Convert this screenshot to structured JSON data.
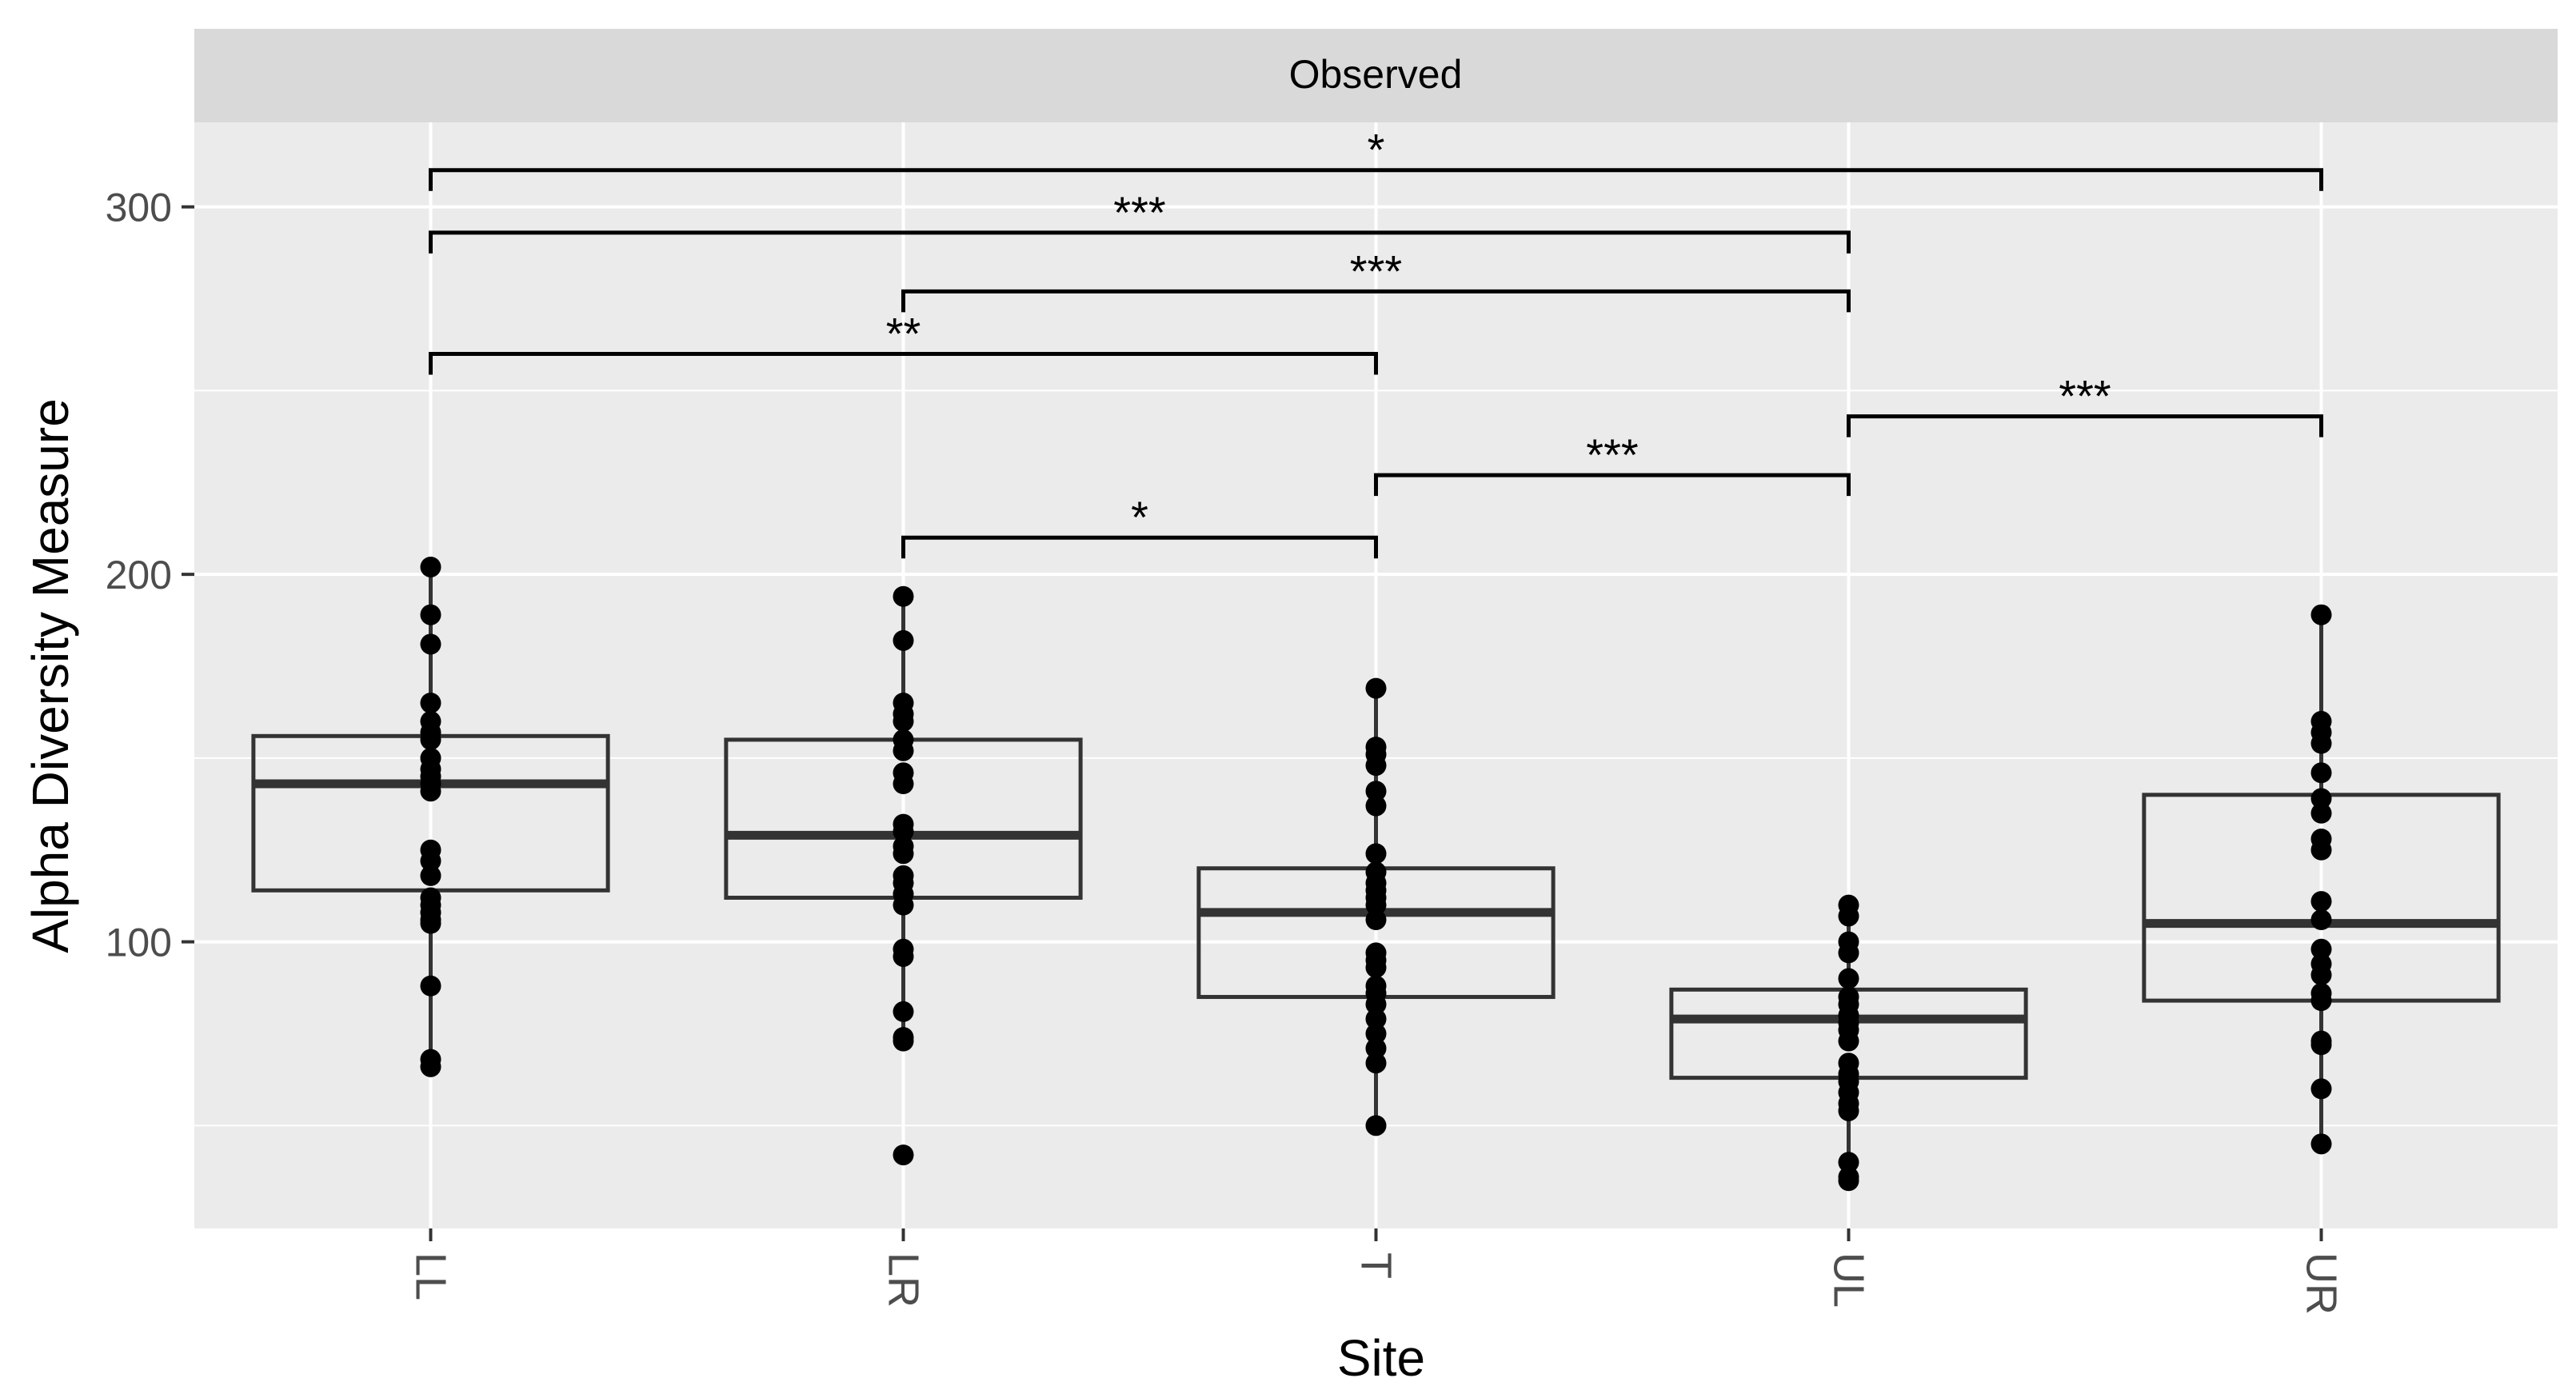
{
  "chart_data": {
    "type": "box",
    "facet_label": "Observed",
    "xlabel": "Site",
    "ylabel": "Alpha Diversity Measure",
    "ylim": [
      22,
      323
    ],
    "yticks": [
      100,
      200,
      300
    ],
    "categories": [
      "LL",
      "LR",
      "T",
      "UL",
      "UR"
    ],
    "boxes": [
      {
        "category": "LL",
        "q1": 114,
        "median": 143,
        "q3": 156,
        "whisker_low": 66,
        "whisker_high": 202
      },
      {
        "category": "LR",
        "q1": 112,
        "median": 129,
        "q3": 155,
        "whisker_low": 73,
        "whisker_high": 194
      },
      {
        "category": "T",
        "q1": 85,
        "median": 108,
        "q3": 120,
        "whisker_low": 50,
        "whisker_high": 169
      },
      {
        "category": "UL",
        "q1": 63,
        "median": 79,
        "q3": 87,
        "whisker_low": 35,
        "whisker_high": 110
      },
      {
        "category": "UR",
        "q1": 84,
        "median": 105,
        "q3": 140,
        "whisker_low": 45,
        "whisker_high": 189
      }
    ],
    "points": {
      "LL": [
        202,
        189,
        181,
        165,
        160,
        157,
        155,
        150,
        147,
        145,
        143,
        141,
        125,
        122,
        118,
        112,
        110,
        108,
        106,
        105,
        88,
        68,
        66
      ],
      "LR": [
        194,
        182,
        165,
        162,
        160,
        155,
        152,
        146,
        143,
        132,
        130,
        126,
        124,
        118,
        116,
        113,
        110,
        98,
        96,
        81,
        74,
        73,
        42
      ],
      "T": [
        169,
        153,
        151,
        148,
        141,
        137,
        124,
        119,
        116,
        114,
        112,
        110,
        106,
        97,
        95,
        93,
        88,
        86,
        83,
        79,
        75,
        71,
        67,
        50
      ],
      "UL": [
        110,
        107,
        100,
        97,
        90,
        85,
        83,
        80,
        78,
        76,
        73,
        67,
        64,
        62,
        59,
        56,
        54,
        40,
        36,
        35
      ],
      "UR": [
        189,
        160,
        157,
        154,
        146,
        139,
        135,
        128,
        125,
        111,
        106,
        98,
        94,
        91,
        86,
        84,
        73,
        72,
        60,
        45
      ]
    },
    "significance": [
      {
        "from": "LL",
        "to": "UR",
        "y": 310,
        "label": "*"
      },
      {
        "from": "LL",
        "to": "UL",
        "y": 293,
        "label": "***"
      },
      {
        "from": "LR",
        "to": "UL",
        "y": 277,
        "label": "***"
      },
      {
        "from": "LL",
        "to": "T",
        "y": 260,
        "label": "**"
      },
      {
        "from": "UL",
        "to": "UR",
        "y": 243,
        "label": "***"
      },
      {
        "from": "T",
        "to": "UL",
        "y": 227,
        "label": "***"
      },
      {
        "from": "LR",
        "to": "T",
        "y": 210,
        "label": "*"
      }
    ],
    "colors": {
      "panel": "#ebebeb",
      "strip": "#d9d9d9",
      "grid": "#ffffff",
      "box": "#333333",
      "point": "#000000"
    }
  }
}
